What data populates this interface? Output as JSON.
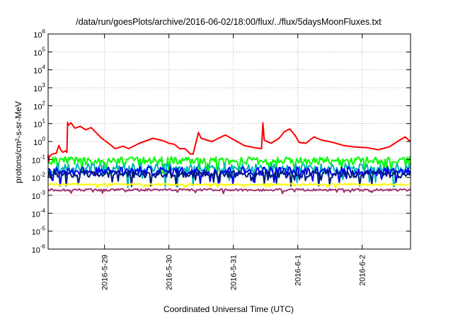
{
  "chart_data": {
    "type": "line",
    "title": "/data/run/goesPlots/archive/2016-06-02/18:00/flux/../flux/5daysMoonFluxes.txt",
    "xlabel": "Coordinated Universal Time (UTC)",
    "ylabel": "protons/cm²-s-sr-MeV",
    "y_scale": "log",
    "ylim": [
      1e-06,
      1000000.0
    ],
    "y_ticks": [
      {
        "base": "10",
        "exp": "6"
      },
      {
        "base": "10",
        "exp": "5"
      },
      {
        "base": "10",
        "exp": "4"
      },
      {
        "base": "10",
        "exp": "3"
      },
      {
        "base": "10",
        "exp": "2"
      },
      {
        "base": "10",
        "exp": "1"
      },
      {
        "base": "10",
        "exp": "0"
      },
      {
        "base": "10",
        "exp": "-1"
      },
      {
        "base": "10",
        "exp": "-2"
      },
      {
        "base": "10",
        "exp": "-3"
      },
      {
        "base": "10",
        "exp": "-4"
      },
      {
        "base": "10",
        "exp": "-5"
      },
      {
        "base": "10",
        "exp": "-6"
      }
    ],
    "xlim": [
      "2016-05-28 03:00",
      "2016-06-02 18:00"
    ],
    "x_tick_labels": [
      "2016-5-29",
      "2016-5-30",
      "2016-5-31",
      "2016-6-1",
      "2016-6-2"
    ],
    "x_ticks": [
      "2016-05-29 00:00",
      "2016-05-30 00:00",
      "2016-05-31 00:00",
      "2016-06-01 00:00",
      "2016-06-02 00:00"
    ],
    "grid": true,
    "colors": {
      "red": "#ff0000",
      "green": "#00ff00",
      "cyan": "#00b3b3",
      "blue": "#0000ff",
      "navy": "#001a80",
      "yellow": "#ffff00",
      "purple": "#a0306e"
    },
    "series": [
      {
        "color": "#ff0000",
        "anchors": [
          [
            "2016-05-28 03:00",
            0.18
          ],
          [
            "2016-05-28 03:10",
            0.06
          ],
          [
            "2016-05-28 03:25",
            0.14
          ],
          [
            "2016-05-28 04:30",
            0.2
          ],
          [
            "2016-05-28 06:00",
            0.22
          ],
          [
            "2016-05-28 07:00",
            0.6
          ],
          [
            "2016-05-28 07:40",
            0.35
          ],
          [
            "2016-05-28 08:30",
            0.25
          ],
          [
            "2016-05-28 09:30",
            0.3
          ],
          [
            "2016-05-28 10:00",
            0.25
          ],
          [
            "2016-05-28 10:15",
            12
          ],
          [
            "2016-05-28 10:30",
            8
          ],
          [
            "2016-05-28 11:30",
            11
          ],
          [
            "2016-05-28 13:00",
            5.5
          ],
          [
            "2016-05-28 15:00",
            7
          ],
          [
            "2016-05-28 17:00",
            4.5
          ],
          [
            "2016-05-28 19:00",
            6
          ],
          [
            "2016-05-28 21:00",
            3
          ],
          [
            "2016-05-28 23:00",
            1.5
          ],
          [
            "2016-05-29 02:00",
            0.7
          ],
          [
            "2016-05-29 04:00",
            0.4
          ],
          [
            "2016-05-29 07:00",
            0.55
          ],
          [
            "2016-05-29 09:00",
            0.4
          ],
          [
            "2016-05-29 13:00",
            0.8
          ],
          [
            "2016-05-29 18:00",
            1.5
          ],
          [
            "2016-05-29 22:00",
            1.1
          ],
          [
            "2016-05-30 00:00",
            0.8
          ],
          [
            "2016-05-30 02:00",
            0.7
          ],
          [
            "2016-05-30 04:00",
            0.4
          ],
          [
            "2016-05-30 06:00",
            0.4
          ],
          [
            "2016-05-30 08:00",
            0.2
          ],
          [
            "2016-05-30 09:00",
            0.2
          ],
          [
            "2016-05-30 10:00",
            0.8
          ],
          [
            "2016-05-30 11:00",
            3.2
          ],
          [
            "2016-05-30 12:00",
            1.5
          ],
          [
            "2016-05-30 16:00",
            1.0
          ],
          [
            "2016-05-30 21:00",
            2.3
          ],
          [
            "2016-05-31 00:00",
            1.3
          ],
          [
            "2016-05-31 04:00",
            0.6
          ],
          [
            "2016-05-31 08:00",
            0.45
          ],
          [
            "2016-05-31 10:30",
            0.4
          ],
          [
            "2016-05-31 11:00",
            11
          ],
          [
            "2016-05-31 11:30",
            1.2
          ],
          [
            "2016-05-31 14:00",
            0.8
          ],
          [
            "2016-05-31 17:00",
            1.5
          ],
          [
            "2016-05-31 19:00",
            3.5
          ],
          [
            "2016-05-31 21:00",
            5
          ],
          [
            "2016-05-31 23:00",
            2.2
          ],
          [
            "2016-06-01 00:30",
            0.9
          ],
          [
            "2016-06-01 03:00",
            0.8
          ],
          [
            "2016-06-01 06:00",
            1.8
          ],
          [
            "2016-06-01 09:00",
            1.2
          ],
          [
            "2016-06-01 13:00",
            0.9
          ],
          [
            "2016-06-01 17:00",
            0.6
          ],
          [
            "2016-06-01 21:00",
            0.5
          ],
          [
            "2016-06-02 02:00",
            0.45
          ],
          [
            "2016-06-02 06:00",
            0.35
          ],
          [
            "2016-06-02 10:00",
            0.5
          ],
          [
            "2016-06-02 14:00",
            1.2
          ],
          [
            "2016-06-02 16:00",
            1.8
          ],
          [
            "2016-06-02 18:00",
            1.0
          ]
        ]
      },
      {
        "color": "#00ff00",
        "base": 0.085,
        "noise": 0.22
      },
      {
        "color": "#00b3b3",
        "base": 0.03,
        "noise": 0.3
      },
      {
        "color": "#0000ff",
        "base": 0.022,
        "noise": 0.25
      },
      {
        "color": "#001a80",
        "base": 0.015,
        "noise": 0.2
      },
      {
        "color": "#ffff00",
        "base": 0.004,
        "noise": 0.05
      },
      {
        "color": "#a0306e",
        "base": 0.002,
        "noise": 0.06
      }
    ]
  }
}
